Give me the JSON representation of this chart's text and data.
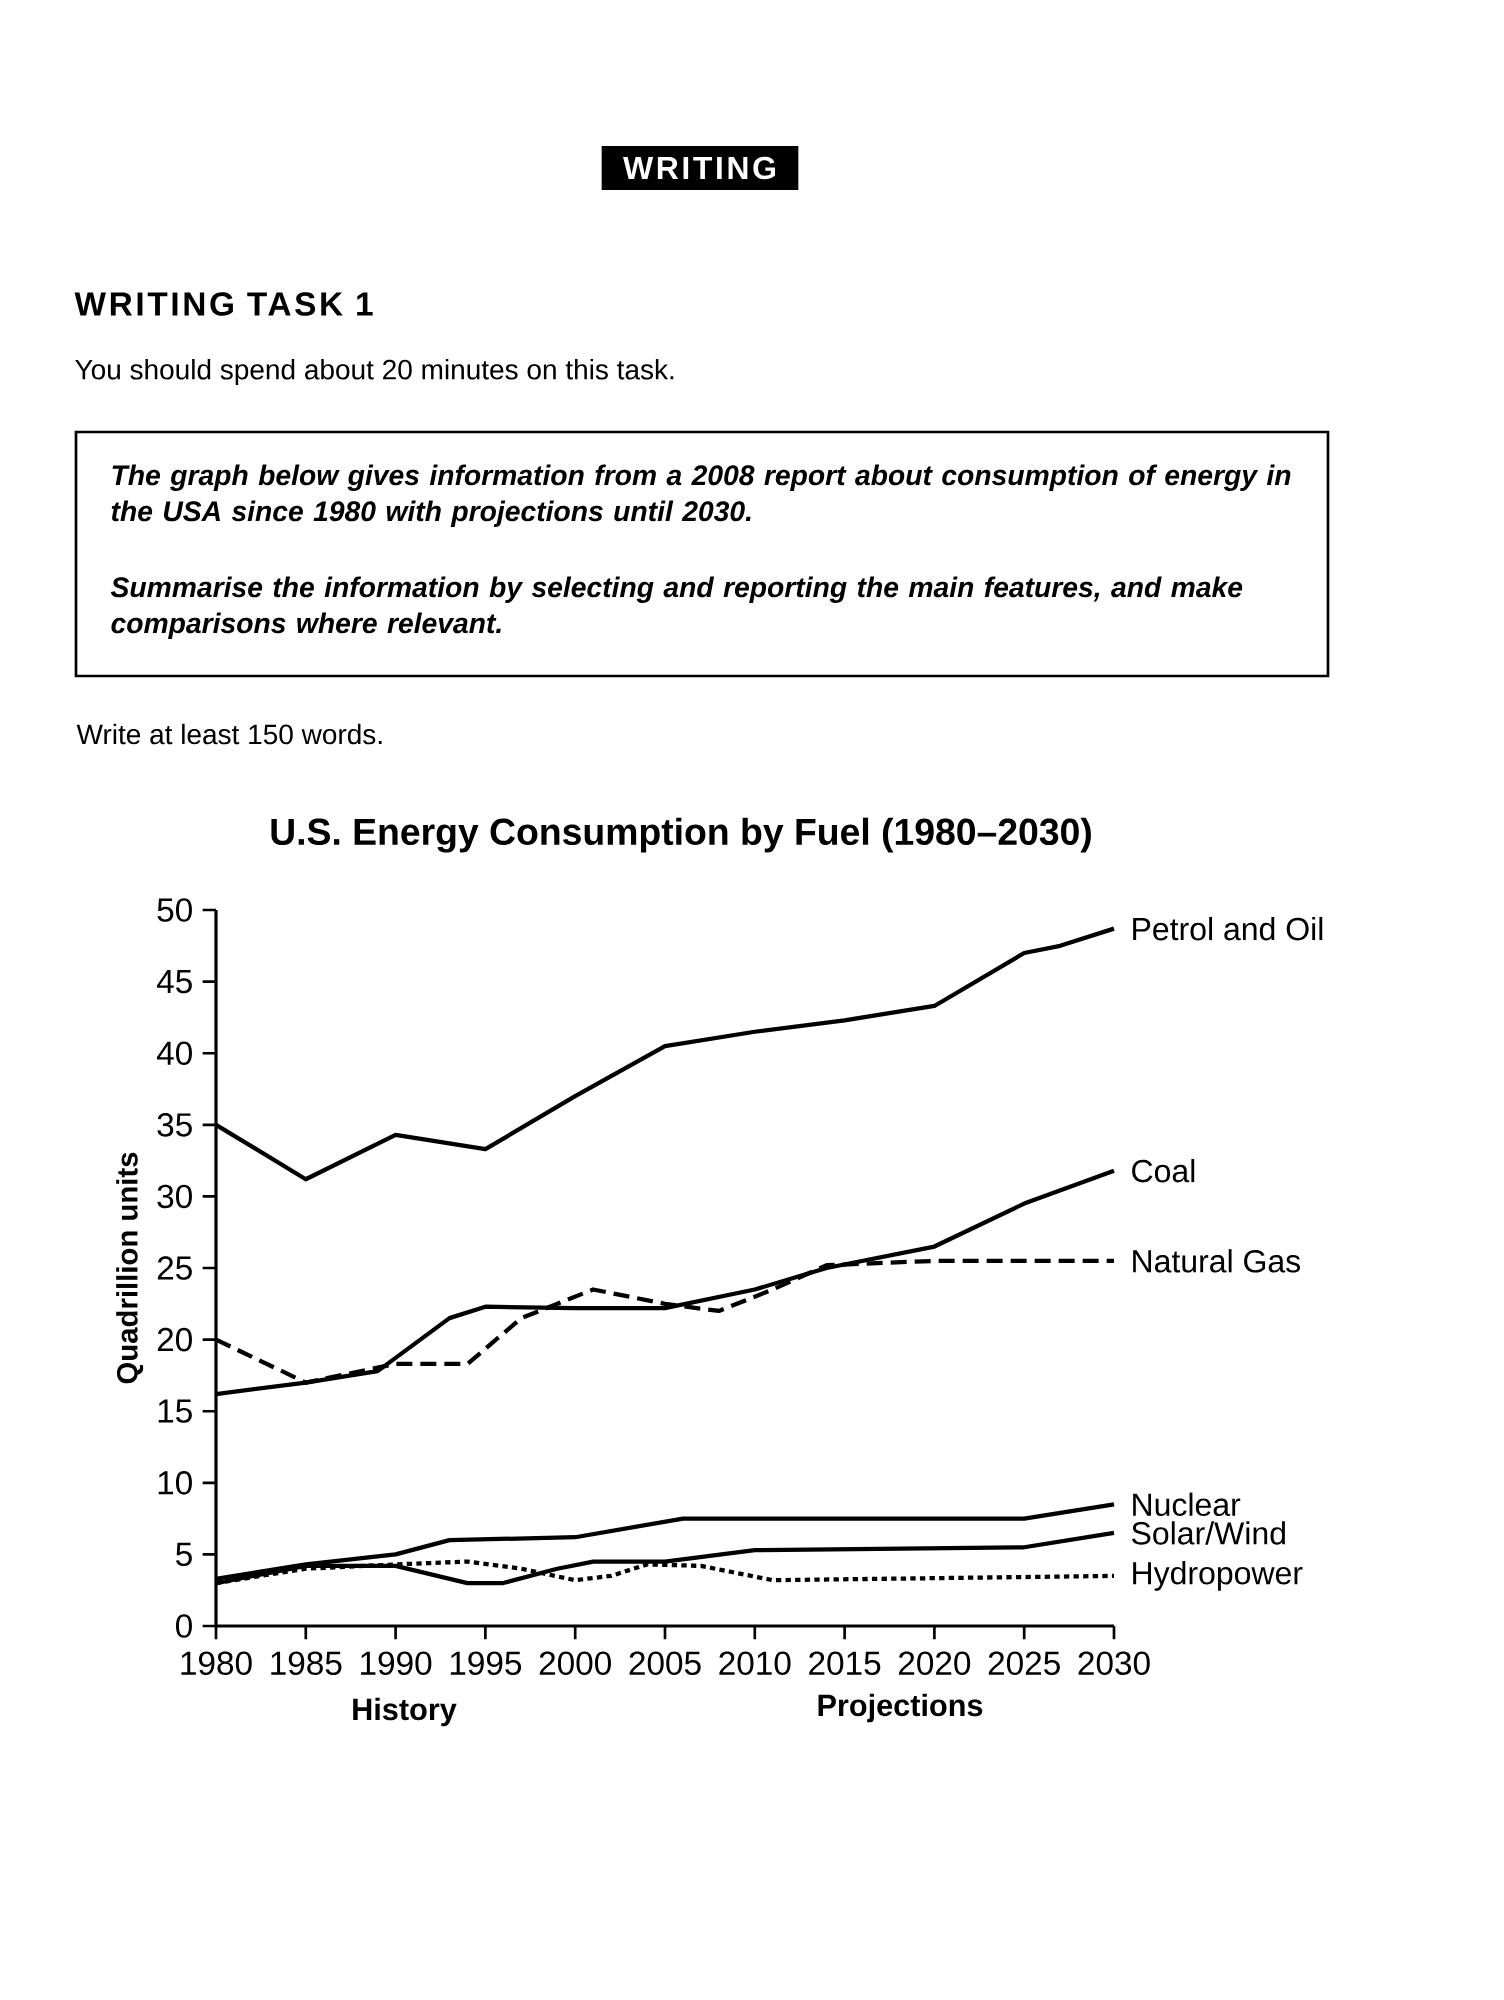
{
  "chart_data": {
    "type": "line",
    "title": "U.S. Energy Consumption by Fuel (1980–2030)",
    "ylabel": "Quadrillion units",
    "xlim": [
      1980,
      2030
    ],
    "xticks": [
      1980,
      1985,
      1990,
      1995,
      2000,
      2005,
      2010,
      2015,
      2020,
      2025,
      2030
    ],
    "ylim": [
      0,
      50
    ],
    "yticks": [
      0,
      5,
      10,
      15,
      20,
      25,
      30,
      35,
      40,
      45,
      50
    ],
    "series": [
      {
        "name": "Petrol and Oil",
        "color": "#000000",
        "line_style": "solid",
        "x": [
          1980,
          1985,
          1990,
          1995,
          2000,
          2005,
          2010,
          2015,
          2020,
          2025,
          2027,
          2030
        ],
        "values": [
          35,
          31.2,
          34.3,
          33.3,
          37,
          40.5,
          41.5,
          42.3,
          43.3,
          47,
          47.5,
          48.7
        ]
      },
      {
        "name": "Coal",
        "color": "#000000",
        "line_style": "solid",
        "x": [
          1980,
          1985,
          1989,
          1993,
          1995,
          2000,
          2005,
          2010,
          2014,
          2020,
          2025,
          2030
        ],
        "values": [
          16.2,
          17,
          17.8,
          21.5,
          22.3,
          22.2,
          22.2,
          23.5,
          25,
          26.5,
          29.5,
          31.8
        ]
      },
      {
        "name": "Natural Gas",
        "color": "#000000",
        "line_style": "dashed",
        "x": [
          1980,
          1985,
          1990,
          1994,
          1997,
          2001,
          2005,
          2008,
          2011,
          2014,
          2020,
          2030
        ],
        "values": [
          20,
          17,
          18.3,
          18.3,
          21.5,
          23.5,
          22.5,
          22,
          23.5,
          25.2,
          25.5,
          25.5
        ]
      },
      {
        "name": "Nuclear",
        "color": "#000000",
        "line_style": "solid",
        "x": [
          1980,
          1985,
          1990,
          1993,
          2000,
          2006,
          2025,
          2030
        ],
        "values": [
          3.3,
          4.3,
          5,
          6,
          6.2,
          7.5,
          7.5,
          8.5
        ]
      },
      {
        "name": "Solar/Wind",
        "color": "#000000",
        "line_style": "solid",
        "x": [
          1980,
          1985,
          1990,
          1994,
          1996,
          1999,
          2001,
          2005,
          2010,
          2025,
          2030
        ],
        "values": [
          3,
          4.2,
          4.2,
          3,
          3,
          4,
          4.5,
          4.5,
          5.3,
          5.5,
          6.5
        ]
      },
      {
        "name": "Hydropower",
        "color": "#000000",
        "line_style": "dotted",
        "x": [
          1980,
          1985,
          1990,
          1994,
          1997,
          2000,
          2002,
          2004,
          2007,
          2011,
          2030
        ],
        "values": [
          3,
          4,
          4.3,
          4.5,
          4,
          3.2,
          3.5,
          4.3,
          4.2,
          3.2,
          3.5
        ]
      }
    ],
    "annotations": [
      "WRITING",
      "WRITING TASK 1",
      "You should spend about 20 minutes on this task.",
      "The graph below gives information from a 2008 report about consumption of energy in the USA since 1980 with projections until 2030.",
      "Summarise the information by selecting and reporting the main features, and make comparisons where relevant.",
      "Write at least 150 words.",
      "History",
      "Projections"
    ]
  }
}
